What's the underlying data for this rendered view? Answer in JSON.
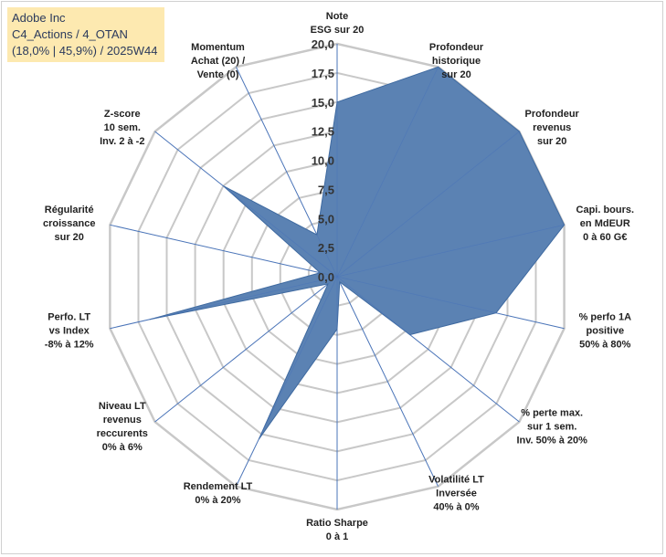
{
  "header": {
    "line1": "Adobe Inc",
    "line2": "C4_Actions / 4_OTAN",
    "line3": "(18,0% | 45,9%) / 2025W44"
  },
  "colors": {
    "fill": "#5b82b3",
    "grid": "#c8c8c8",
    "spoke": "#4a74b8",
    "background": "#fde9b0"
  },
  "chart_data": {
    "type": "radar",
    "title": "",
    "rmin": 0,
    "rmax": 20,
    "ticks": [
      "0,0",
      "2,5",
      "5,0",
      "7,5",
      "10,0",
      "12,5",
      "15,0",
      "17,5",
      "20,0"
    ],
    "axes": [
      {
        "label": [
          "Note",
          "ESG sur 20"
        ],
        "value": 15.0
      },
      {
        "label": [
          "Profondeur",
          "historique",
          "sur 20"
        ],
        "value": 20.0
      },
      {
        "label": [
          "Profondeur",
          "revenus",
          "sur 20"
        ],
        "value": 20.0
      },
      {
        "label": [
          "Capi. bours.",
          "en MdEUR",
          "0 à 60 G€"
        ],
        "value": 20.0
      },
      {
        "label": [
          "% perfo 1A",
          "positive",
          "50% à 80%"
        ],
        "value": 14.0
      },
      {
        "label": [
          "% perte max.",
          "sur 1 sem.",
          "Inv. 50% à 20%"
        ],
        "value": 8.0
      },
      {
        "label": [
          "Volatilité LT",
          "Inversée",
          "40% à 0%"
        ],
        "value": 0.5
      },
      {
        "label": [
          "Ratio Sharpe",
          "0 à 1"
        ],
        "value": 4.5
      },
      {
        "label": [
          "Rendement LT",
          "0% à 20%"
        ],
        "value": 15.5
      },
      {
        "label": [
          "Niveau LT",
          "revenus",
          "reccurents",
          "0% à 6%"
        ],
        "value": 1.0
      },
      {
        "label": [
          "Perfo. LT",
          "vs Index",
          "-8% à 12%"
        ],
        "value": 16.5
      },
      {
        "label": [
          "Régularité",
          "croissance",
          "sur 20"
        ],
        "value": 1.5
      },
      {
        "label": [
          "Z-score",
          "10 sem.",
          "Inv. 2 à -2"
        ],
        "value": 12.5
      },
      {
        "label": [
          "Momentum",
          "Achat (20) /",
          "Vente (0)"
        ],
        "value": 4.0
      }
    ]
  }
}
